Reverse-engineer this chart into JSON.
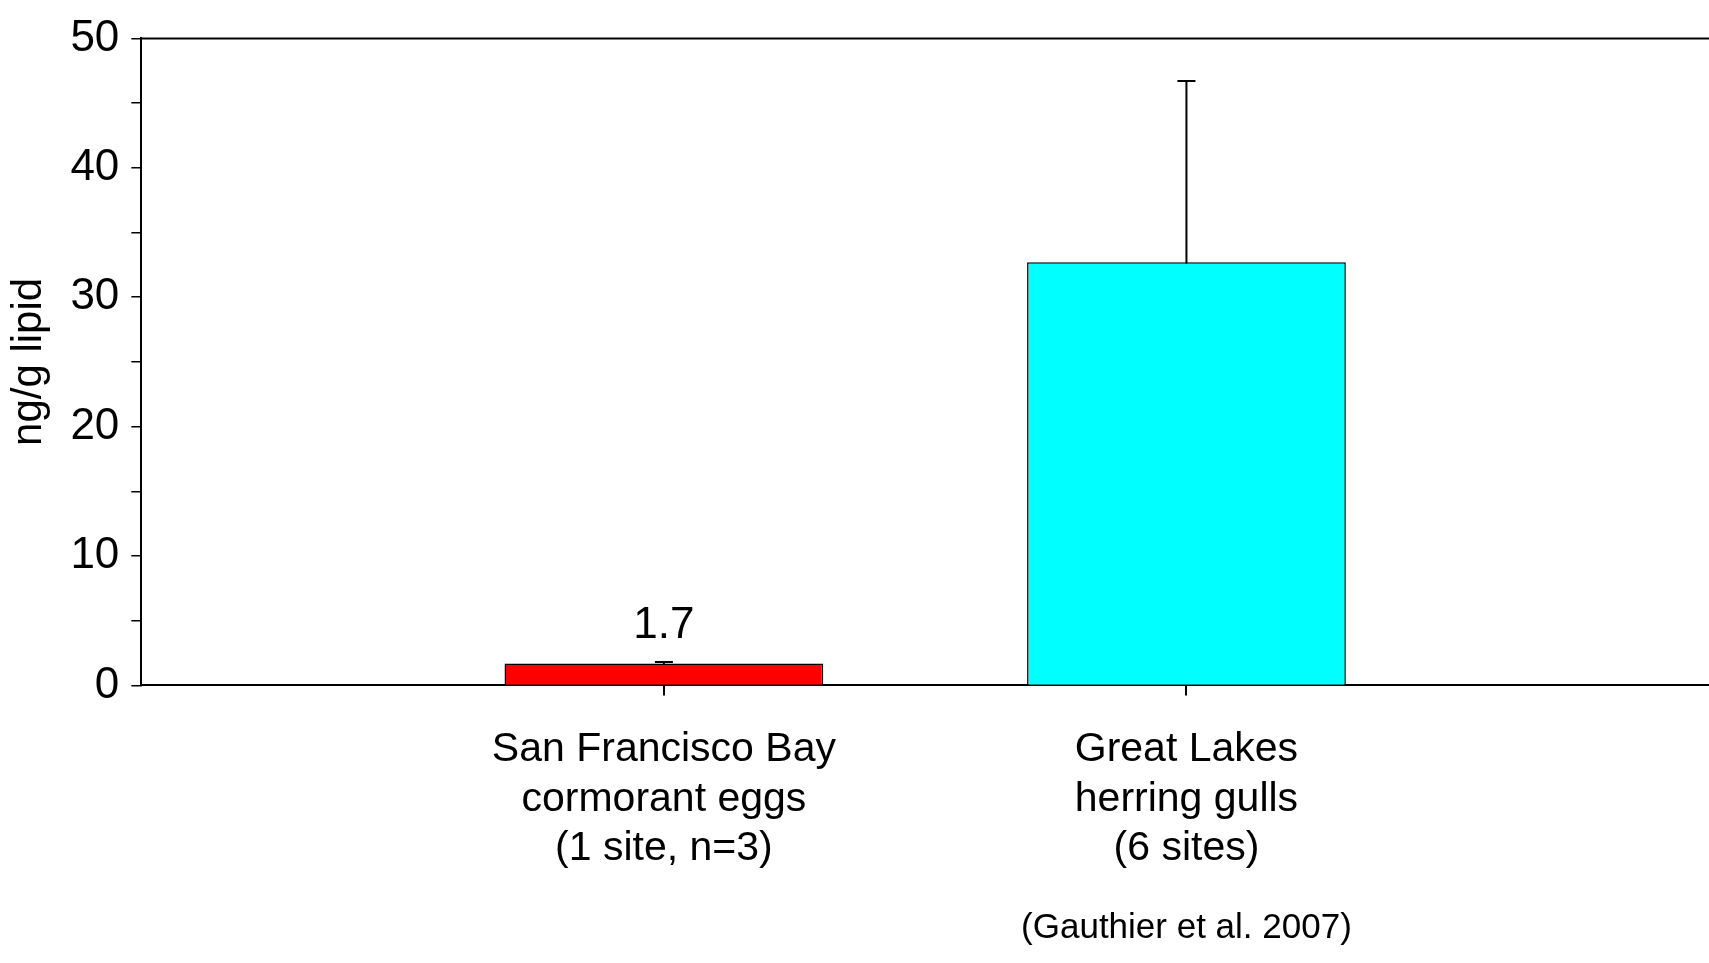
{
  "chart_data": {
    "type": "bar",
    "ylabel": "ng/g lipid",
    "categories": [
      "San Francisco Bay\ncormorant eggs\n(1 site, n=3)",
      "Great Lakes\nherring gulls\n(6 sites)"
    ],
    "annotations": [
      "(Gauthier et al. 2007)"
    ],
    "values": [
      1.7,
      32.7
    ],
    "colors": [
      "#ff0000",
      "#00ffff"
    ],
    "errors": [
      0.1,
      14
    ],
    "value_labels": [
      "1.7",
      null
    ],
    "ylim": [
      0,
      50
    ],
    "yticks": [
      0,
      {
        "value": 5,
        "label": null
      },
      10,
      {
        "value": 15,
        "label": null
      },
      20,
      {
        "value": 25,
        "label": null
      },
      30,
      {
        "value": 35,
        "label": null
      },
      40,
      {
        "value": 45,
        "label": null
      },
      50
    ],
    "grid": false,
    "legend": false
  }
}
